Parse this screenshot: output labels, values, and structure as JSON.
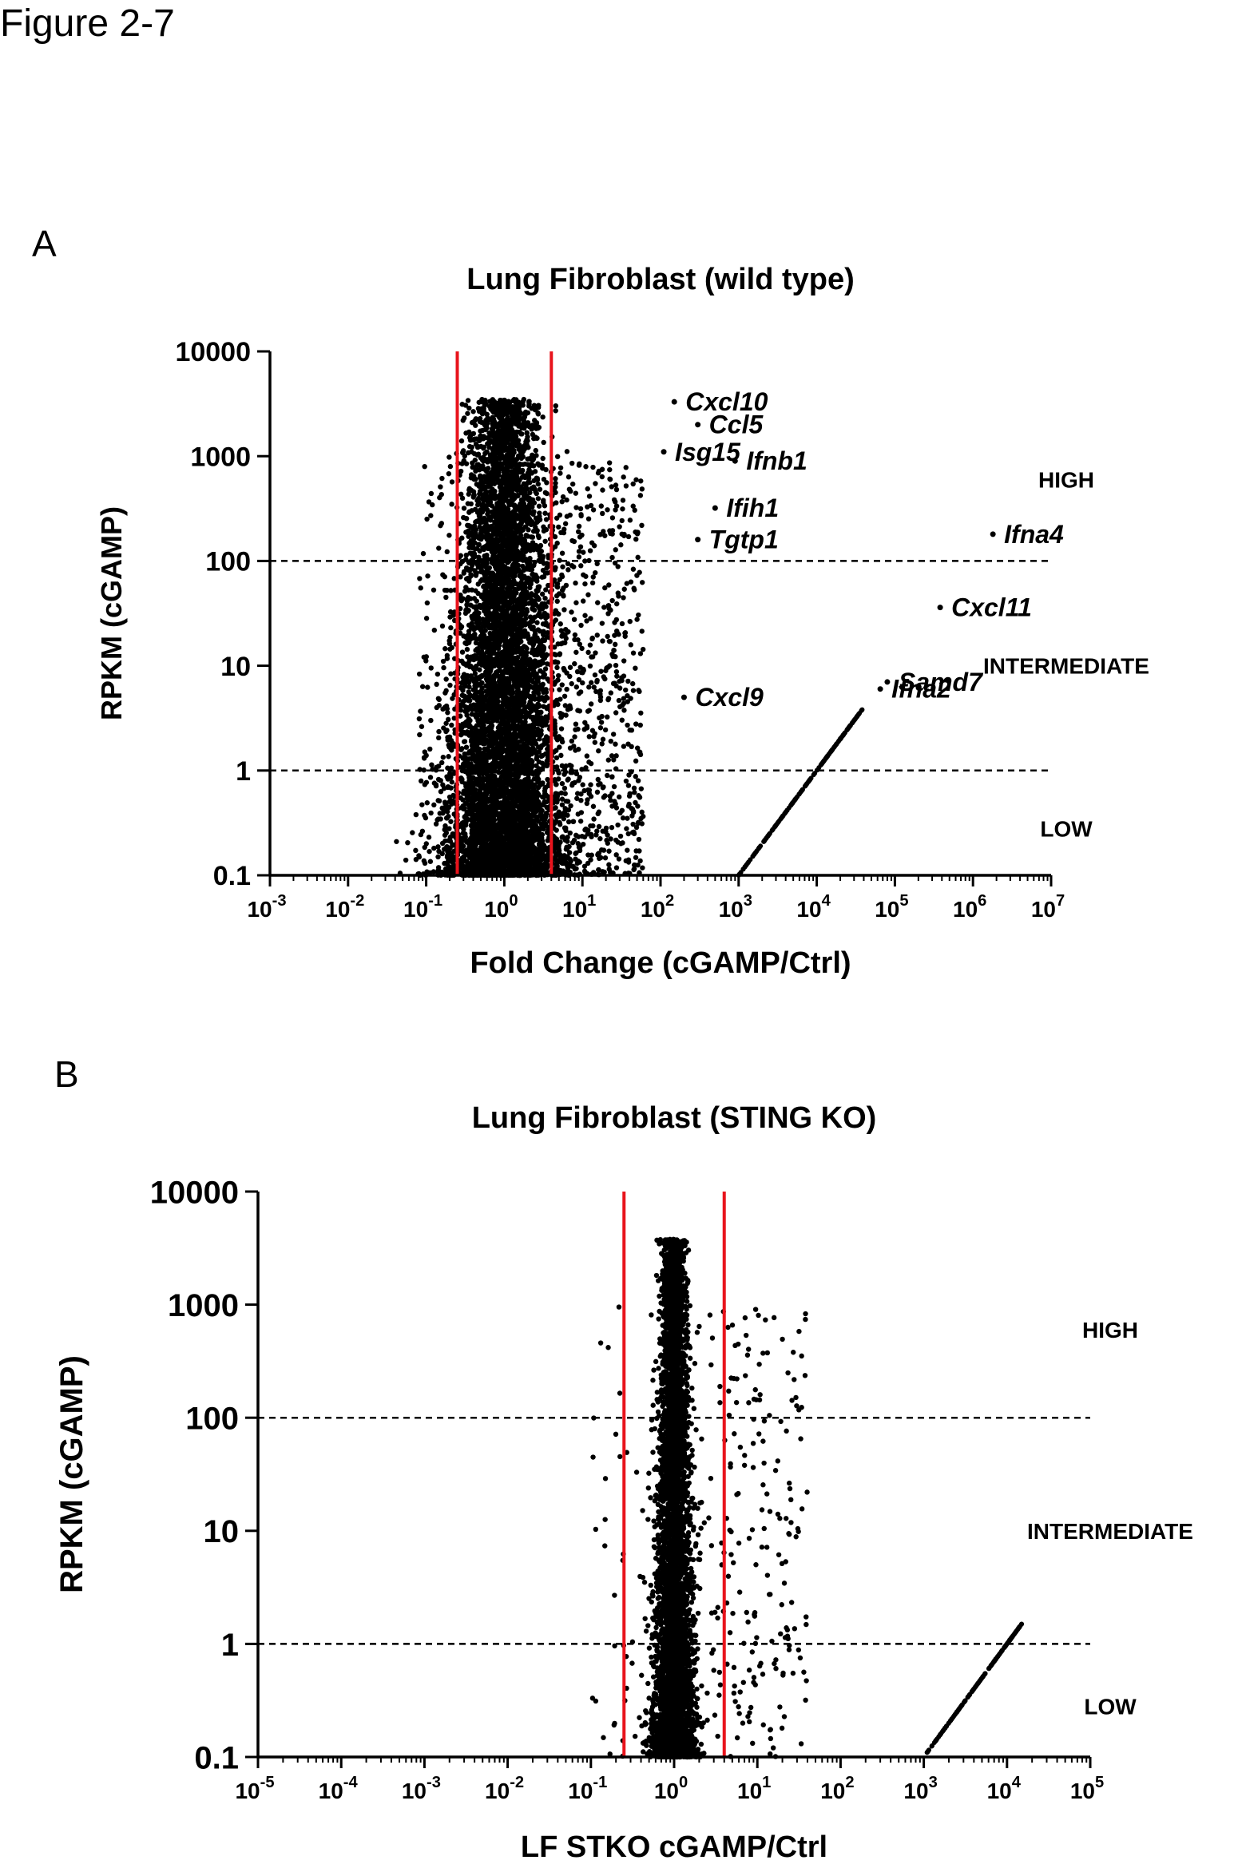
{
  "figure_title": "Figure 2-7",
  "chart_data": [
    {
      "panel": "A",
      "type": "scatter",
      "title": "Lung Fibroblast (wild type)",
      "xlabel": "Fold Change (cGAMP/Ctrl)",
      "ylabel": "RPKM (cGAMP)",
      "x_scale": "log10",
      "y_scale": "log10",
      "xlim": [
        0.001,
        10000000
      ],
      "ylim": [
        0.1,
        10000
      ],
      "x_tick_exponents": [
        -3,
        -2,
        -1,
        0,
        1,
        2,
        3,
        4,
        5,
        6,
        7
      ],
      "y_ticks": [
        {
          "value": 0.1,
          "label": "0.1"
        },
        {
          "value": 1,
          "label": "1"
        },
        {
          "value": 10,
          "label": "10"
        },
        {
          "value": 100,
          "label": "100"
        },
        {
          "value": 1000,
          "label": "1000"
        },
        {
          "value": 10000,
          "label": "10000"
        }
      ],
      "fold_change_cutoffs": [
        0.25,
        4
      ],
      "cutoff_color": "#e8141c",
      "rpkm_thresholds": [
        1,
        100
      ],
      "expression_levels": [
        "HIGH",
        "INTERMEDIATE",
        "LOW"
      ],
      "bulk_distribution": {
        "center_x": 1,
        "x_spread_log10": 0.22,
        "y_min": 0.1,
        "y_max": 3500,
        "outer_x_extent": [
          0.08,
          60
        ]
      },
      "ctrl_zero_diagonal": {
        "x_range": [
          1000,
          40000
        ],
        "y_range": [
          0.1,
          4
        ]
      },
      "labeled_genes": [
        {
          "gene": "Cxcl10",
          "x": 150,
          "y": 3300
        },
        {
          "gene": "Ccl5",
          "x": 300,
          "y": 2000
        },
        {
          "gene": "Isg15",
          "x": 110,
          "y": 1100
        },
        {
          "gene": "Ifnb1",
          "x": 900,
          "y": 900
        },
        {
          "gene": "Ifih1",
          "x": 500,
          "y": 320
        },
        {
          "gene": "Tgtp1",
          "x": 300,
          "y": 160
        },
        {
          "gene": "Ifna4",
          "x": 1800000,
          "y": 180
        },
        {
          "gene": "Cxcl11",
          "x": 380000,
          "y": 36
        },
        {
          "gene": "Samd7",
          "x": 80000,
          "y": 7
        },
        {
          "gene": "Ifna2",
          "x": 65000,
          "y": 6
        },
        {
          "gene": "Cxcl9",
          "x": 200,
          "y": 5
        }
      ]
    },
    {
      "panel": "B",
      "type": "scatter",
      "title": "Lung Fibroblast (STING KO)",
      "xlabel": "LF STKO cGAMP/Ctrl",
      "ylabel": "RPKM (cGAMP)",
      "x_scale": "log10",
      "y_scale": "log10",
      "xlim": [
        1e-05,
        100000
      ],
      "ylim": [
        0.1,
        10000
      ],
      "x_tick_exponents": [
        -5,
        -4,
        -3,
        -2,
        -1,
        0,
        1,
        2,
        3,
        4,
        5
      ],
      "y_ticks": [
        {
          "value": 0.1,
          "label": "0.1"
        },
        {
          "value": 1,
          "label": "1"
        },
        {
          "value": 10,
          "label": "10"
        },
        {
          "value": 100,
          "label": "100"
        },
        {
          "value": 1000,
          "label": "1000"
        },
        {
          "value": 10000,
          "label": "10000"
        }
      ],
      "fold_change_cutoffs": [
        0.25,
        4
      ],
      "cutoff_color": "#e8141c",
      "rpkm_thresholds": [
        1,
        100
      ],
      "expression_levels": [
        "HIGH",
        "INTERMEDIATE",
        "LOW"
      ],
      "bulk_distribution": {
        "center_x": 1,
        "x_spread_log10": 0.07,
        "y_min": 0.1,
        "y_max": 3800,
        "outer_x_extent": [
          0.1,
          40
        ]
      },
      "ctrl_zero_diagonal": {
        "x_range": [
          1000,
          15000
        ],
        "y_range": [
          0.1,
          1.5
        ]
      },
      "labeled_genes": []
    }
  ]
}
